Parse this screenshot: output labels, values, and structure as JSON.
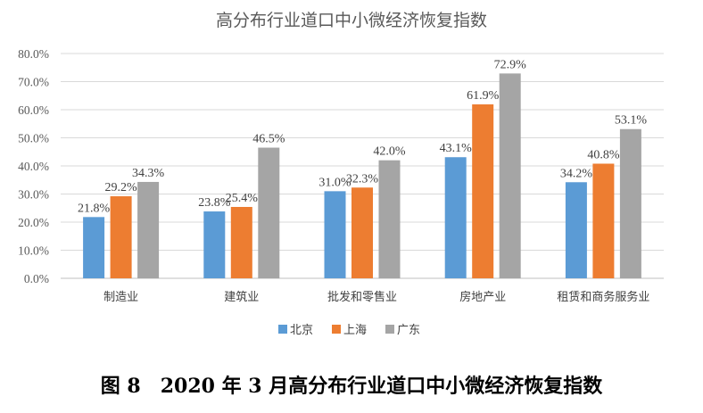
{
  "chart_data": {
    "type": "bar",
    "title": "高分布行业道口中小微经济恢复指数",
    "categories": [
      "制造业",
      "建筑业",
      "批发和零售业",
      "房地产业",
      "租赁和商务服务业"
    ],
    "series": [
      {
        "name": "北京",
        "color": "#5b9bd5",
        "values": [
          21.8,
          23.8,
          31.0,
          43.1,
          34.2
        ]
      },
      {
        "name": "上海",
        "color": "#ed7d31",
        "values": [
          29.2,
          25.4,
          32.3,
          61.9,
          40.8
        ]
      },
      {
        "name": "广东",
        "color": "#a5a5a5",
        "values": [
          34.3,
          46.5,
          42.0,
          72.9,
          53.1
        ]
      }
    ],
    "value_format": "percent_1dp",
    "ylim": [
      0,
      80
    ],
    "yticks": [
      "0.0%",
      "10.0%",
      "20.0%",
      "30.0%",
      "40.0%",
      "50.0%",
      "60.0%",
      "70.0%",
      "80.0%"
    ],
    "grid": true,
    "legend_position": "bottom"
  },
  "caption": "图 8　2020 年 3 月高分布行业道口中小微经济恢复指数"
}
